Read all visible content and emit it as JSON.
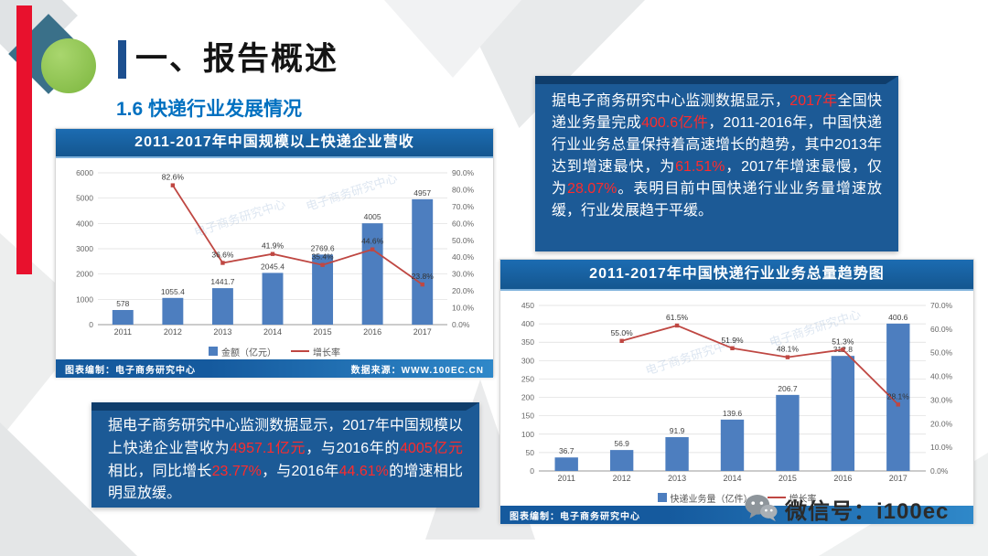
{
  "slide": {
    "section_title": "一、报告概述",
    "subtitle": "1.6 快递行业发展情况"
  },
  "colors": {
    "accent_red": "#e8112d",
    "green_circle": "#7cb63e",
    "teal_diamond": "#3a7089",
    "header_blue": "#14568f",
    "callout_blue": "#1c5a96",
    "bar_blue": "#4d7ebf",
    "line_red": "#bf4742",
    "highlight_red": "#ff2b2b",
    "subtitle_blue": "#0070c0"
  },
  "chart_data": [
    {
      "type": "bar",
      "title": "2011-2017年中国规模以上快递企业营收",
      "categories": [
        "2011",
        "2012",
        "2013",
        "2014",
        "2015",
        "2016",
        "2017"
      ],
      "series": [
        {
          "name": "金额（亿元）",
          "kind": "bar",
          "axis": "left",
          "values": [
            578,
            1055.4,
            1441.7,
            2045.4,
            2769.6,
            4005,
            4957
          ],
          "labels": [
            "578",
            "1055.4",
            "1441.7",
            "2045.4",
            "2769.6",
            "4005",
            "4957"
          ]
        },
        {
          "name": "增长率",
          "kind": "line",
          "axis": "right",
          "values": [
            null,
            82.6,
            36.6,
            41.9,
            35.4,
            44.6,
            23.8
          ],
          "labels": [
            "",
            "82.6%",
            "36.6%",
            "41.9%",
            "35.4%",
            "44.6%",
            "23.8%"
          ]
        }
      ],
      "left_axis": {
        "min": 0,
        "max": 6000,
        "step": 1000,
        "decimals": 0,
        "suffix": ""
      },
      "right_axis": {
        "min": 0,
        "max": 90,
        "step": 10,
        "decimals": 1,
        "suffix": "%"
      },
      "grid": true,
      "legend_position": "bottom",
      "watermark": "电子商务研究中心",
      "footer_left": "图表编制：电子商务研究中心",
      "footer_right": "数据来源：WWW.100EC.CN"
    },
    {
      "type": "bar",
      "title": "2011-2017年中国快递行业业务总量趋势图",
      "categories": [
        "2011",
        "2012",
        "2013",
        "2014",
        "2015",
        "2016",
        "2017"
      ],
      "series": [
        {
          "name": "快递业务量（亿件）",
          "kind": "bar",
          "axis": "left",
          "values": [
            36.7,
            56.9,
            91.9,
            139.6,
            206.7,
            312.8,
            400.6
          ],
          "labels": [
            "36.7",
            "56.9",
            "91.9",
            "139.6",
            "206.7",
            "312.8",
            "400.6"
          ]
        },
        {
          "name": "增长率",
          "kind": "line",
          "axis": "right",
          "values": [
            null,
            55.0,
            61.5,
            51.9,
            48.1,
            51.3,
            28.1
          ],
          "labels": [
            "",
            "55.0%",
            "61.5%",
            "51.9%",
            "48.1%",
            "51.3%",
            "28.1%"
          ]
        }
      ],
      "left_axis": {
        "min": 0,
        "max": 450,
        "step": 50,
        "decimals": 0,
        "suffix": ""
      },
      "right_axis": {
        "min": 0,
        "max": 70,
        "step": 10,
        "decimals": 1,
        "suffix": "%"
      },
      "grid": true,
      "legend_position": "bottom",
      "watermark": "电子商务研究中心",
      "footer_left": "图表编制：电子商务研究中心",
      "footer_right": ""
    }
  ],
  "callouts": {
    "right_box": {
      "segments": [
        {
          "t": "据电子商务研究中心监测数据显示，",
          "h": false
        },
        {
          "t": "2017年",
          "h": true
        },
        {
          "t": "全国快递业务量完成",
          "h": false
        },
        {
          "t": "400.6亿件",
          "h": true
        },
        {
          "t": "，2011-2016年，中国快递行业业务总量保持着高速增长的趋势，其中2013年达到增速最快，为",
          "h": false
        },
        {
          "t": "61.51%",
          "h": true
        },
        {
          "t": "，2017年增速最慢，仅为",
          "h": false
        },
        {
          "t": "28.07%",
          "h": true
        },
        {
          "t": "。表明目前中国快递行业业务量增速放缓，行业发展趋于平缓。",
          "h": false
        }
      ]
    },
    "left_box": {
      "segments": [
        {
          "t": "据电子商务研究中心监测数据显示，2017年中国规模以上快递企业营收为",
          "h": false
        },
        {
          "t": "4957.1亿元",
          "h": true
        },
        {
          "t": "，与2016年的",
          "h": false
        },
        {
          "t": "4005亿元",
          "h": true
        },
        {
          "t": "相比，同比增长",
          "h": false
        },
        {
          "t": "23.77%",
          "h": true
        },
        {
          "t": "，与2016年",
          "h": false
        },
        {
          "t": "44.61%",
          "h": true
        },
        {
          "t": "的增速相比明显放缓。",
          "h": false
        }
      ]
    }
  },
  "footer": {
    "wechat_label": "微信号：i100ec"
  }
}
